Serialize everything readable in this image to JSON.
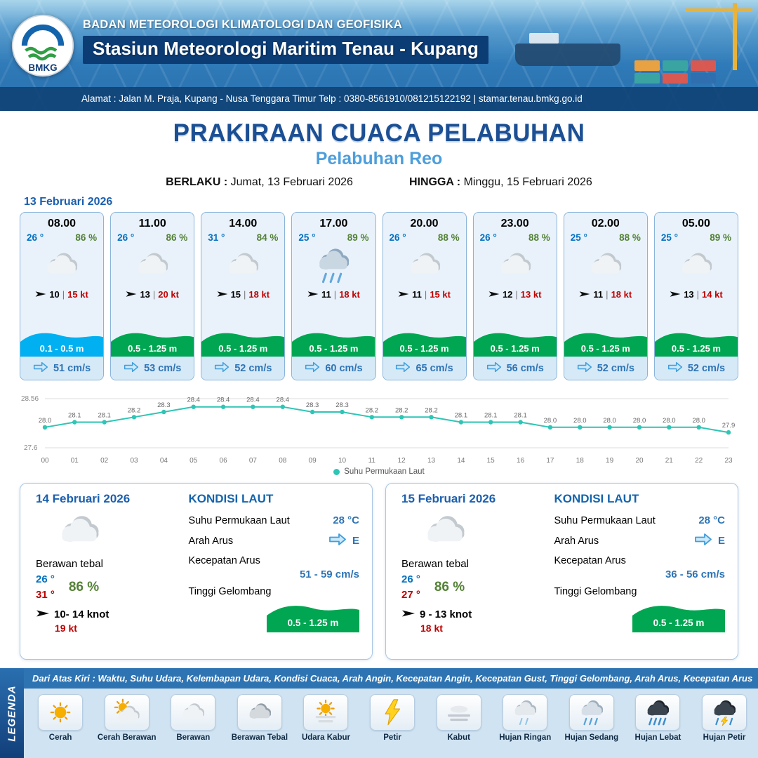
{
  "header": {
    "logo": "BMKG",
    "org": "BADAN METEOROLOGI KLIMATOLOGI DAN GEOFISIKA",
    "station": "Stasiun Meteorologi Maritim Tenau - Kupang",
    "address": "Alamat : Jalan M. Praja, Kupang - Nusa Tenggara Timur Telp : 0380-8561910/081215122192  | stamar.tenau.bmkg.go.id"
  },
  "title": {
    "main": "PRAKIRAAN CUACA PELABUHAN",
    "subtitle": "Pelabuhan Reo",
    "valid_label": "BERLAKU :",
    "valid_value": "Jumat, 13 Februari 2026",
    "until_label": "HINGGA :",
    "until_value": "Minggu, 15 Februari 2026"
  },
  "day1": {
    "date": "13 Februari 2026",
    "cards": [
      {
        "time": "08.00",
        "temp": "26 °",
        "humidity": "86 %",
        "icon": "berawan",
        "wind": "10",
        "gust": "15 kt",
        "wave": "0.1 - 0.5 m",
        "wave_color": "#00b0f0",
        "current": "51 cm/s"
      },
      {
        "time": "11.00",
        "temp": "26 °",
        "humidity": "86 %",
        "icon": "berawan",
        "wind": "13",
        "gust": "20 kt",
        "wave": "0.5 - 1.25 m",
        "wave_color": "#00a651",
        "current": "53 cm/s"
      },
      {
        "time": "14.00",
        "temp": "31 °",
        "humidity": "84 %",
        "icon": "berawan",
        "wind": "15",
        "gust": "18 kt",
        "wave": "0.5 - 1.25 m",
        "wave_color": "#00a651",
        "current": "52 cm/s"
      },
      {
        "time": "17.00",
        "temp": "25 °",
        "humidity": "89 %",
        "icon": "hujan",
        "wind": "11",
        "gust": "18 kt",
        "wave": "0.5 - 1.25 m",
        "wave_color": "#00a651",
        "current": "60 cm/s"
      },
      {
        "time": "20.00",
        "temp": "26 °",
        "humidity": "88 %",
        "icon": "berawan",
        "wind": "11",
        "gust": "15 kt",
        "wave": "0.5 - 1.25 m",
        "wave_color": "#00a651",
        "current": "65 cm/s"
      },
      {
        "time": "23.00",
        "temp": "26 °",
        "humidity": "88 %",
        "icon": "berawan",
        "wind": "12",
        "gust": "13 kt",
        "wave": "0.5 - 1.25 m",
        "wave_color": "#00a651",
        "current": "56 cm/s"
      },
      {
        "time": "02.00",
        "temp": "25 °",
        "humidity": "88 %",
        "icon": "berawan",
        "wind": "11",
        "gust": "18 kt",
        "wave": "0.5 - 1.25 m",
        "wave_color": "#00a651",
        "current": "52 cm/s"
      },
      {
        "time": "05.00",
        "temp": "25 °",
        "humidity": "89 %",
        "icon": "berawan",
        "wind": "13",
        "gust": "14 kt",
        "wave": "0.5 - 1.25 m",
        "wave_color": "#00a651",
        "current": "52 cm/s"
      }
    ]
  },
  "chart_data": {
    "type": "line",
    "title": "Suhu Permukaan Laut",
    "legend": "Suhu Permukaan Laut",
    "x": [
      "00",
      "01",
      "02",
      "03",
      "04",
      "05",
      "06",
      "07",
      "08",
      "09",
      "10",
      "11",
      "12",
      "13",
      "14",
      "15",
      "16",
      "17",
      "18",
      "19",
      "20",
      "21",
      "22",
      "23"
    ],
    "values": [
      28.0,
      28.1,
      28.1,
      28.2,
      28.3,
      28.4,
      28.4,
      28.4,
      28.4,
      28.3,
      28.3,
      28.2,
      28.2,
      28.2,
      28.1,
      28.1,
      28.1,
      28.0,
      28.0,
      28.0,
      28.0,
      28.0,
      28.0,
      27.9
    ],
    "ylim": [
      27.6,
      28.56
    ],
    "ytick_labels": [
      "28.56",
      "27.6"
    ],
    "xlabel": "",
    "ylabel": "",
    "grid": true,
    "legend_position": "bottom",
    "line_color": "#2fc5b5"
  },
  "daily": [
    {
      "date": "14 Februari 2026",
      "icon": "berawan",
      "condition": "Berawan tebal",
      "temp_min": "26 °",
      "temp_max": "31 °",
      "humidity": "86 %",
      "wind": "10- 14 knot",
      "gust": "19 kt",
      "sea_title": "KONDISI LAUT",
      "sst_label": "Suhu Permukaan Laut",
      "sst": "28 °C",
      "current_dir_label": "Arah Arus",
      "current_dir": "E",
      "current_speed_label": "Kecepatan Arus",
      "current_speed": "51 - 59 cm/s",
      "wave_label": "Tinggi Gelombang",
      "wave": "0.5 - 1.25 m"
    },
    {
      "date": "15 Februari 2026",
      "icon": "berawan",
      "condition": "Berawan tebal",
      "temp_min": "26 °",
      "temp_max": "27 °",
      "humidity": "86 %",
      "wind": "9 - 13 knot",
      "gust": "18 kt",
      "sea_title": "KONDISI LAUT",
      "sst_label": "Suhu Permukaan Laut",
      "sst": "28 °C",
      "current_dir_label": "Arah Arus",
      "current_dir": "E",
      "current_speed_label": "Kecepatan Arus",
      "current_speed": "36 - 56 cm/s",
      "wave_label": "Tinggi Gelombang",
      "wave": "0.5 - 1.25 m"
    }
  ],
  "legend": {
    "tab": "LEGENDA",
    "note": "Dari Atas Kiri : Waktu, Suhu Udara, Kelembapan Udara, Kondisi Cuaca, Arah Angin, Kecepatan Angin, Kecepatan Gust, Tinggi Gelombang, Arah Arus, Kecepatan Arus",
    "items": [
      {
        "label": "Cerah",
        "icon": "cerah"
      },
      {
        "label": "Cerah Berawan",
        "icon": "cerah-berawan"
      },
      {
        "label": "Berawan",
        "icon": "berawan"
      },
      {
        "label": "Berawan Tebal",
        "icon": "berawan-tebal"
      },
      {
        "label": "Udara Kabur",
        "icon": "udara-kabur"
      },
      {
        "label": "Petir",
        "icon": "petir"
      },
      {
        "label": "Kabut",
        "icon": "kabut"
      },
      {
        "label": "Hujan Ringan",
        "icon": "hujan-ringan"
      },
      {
        "label": "Hujan Sedang",
        "icon": "hujan-sedang"
      },
      {
        "label": "Hujan Lebat",
        "icon": "hujan-lebat"
      },
      {
        "label": "Hujan Petir",
        "icon": "hujan-petir"
      }
    ]
  },
  "colors": {
    "accent_blue": "#1b5fae",
    "temp_blue": "#0070c0",
    "humidity_green": "#538135",
    "gust_red": "#c00000",
    "wave_green": "#00a651",
    "wave_blue": "#00b0f0",
    "current_blue": "#2e74b5",
    "sst_line_teal": "#2fc5b5",
    "header_navy": "#0c3c74",
    "legend_bar_blue": "#2e74b3"
  }
}
